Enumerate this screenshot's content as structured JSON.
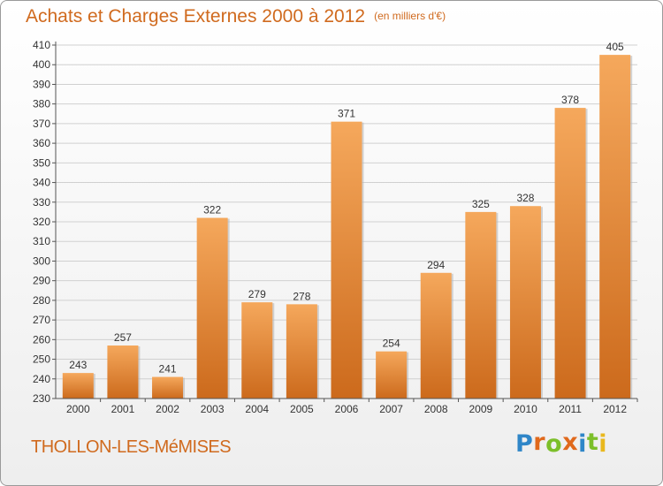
{
  "header": {
    "title": "Achats et Charges Externes 2000 à 2012",
    "subtitle": "(en milliers d'€)"
  },
  "footer": {
    "commune": "THOLLON-LES-MéMISES",
    "logo_text": "Proxiti"
  },
  "colors": {
    "title": "#d06a1e",
    "bar_light": "#f5a85c",
    "bar_dark": "#cc6a1c",
    "grid": "#d0d0d0",
    "logo_letters": [
      "#2f86c8",
      "#e0691c",
      "#7cbf2a",
      "#e0691c",
      "#2f86c8",
      "#7cbf2a",
      "#e9b81d"
    ]
  },
  "chart_data": {
    "type": "bar",
    "title": "Achats et Charges Externes 2000 à 2012",
    "subtitle": "(en milliers d'€)",
    "xlabel": "",
    "ylabel": "",
    "categories": [
      "2000",
      "2001",
      "2002",
      "2003",
      "2004",
      "2005",
      "2006",
      "2007",
      "2008",
      "2009",
      "2010",
      "2011",
      "2012"
    ],
    "values": [
      243,
      257,
      241,
      322,
      279,
      278,
      371,
      254,
      294,
      325,
      328,
      378,
      405
    ],
    "ylim": [
      230,
      410
    ],
    "yticks": [
      230,
      240,
      250,
      260,
      270,
      280,
      290,
      300,
      310,
      320,
      330,
      340,
      350,
      360,
      370,
      380,
      390,
      400,
      410
    ],
    "grid": true,
    "legend": "none"
  }
}
